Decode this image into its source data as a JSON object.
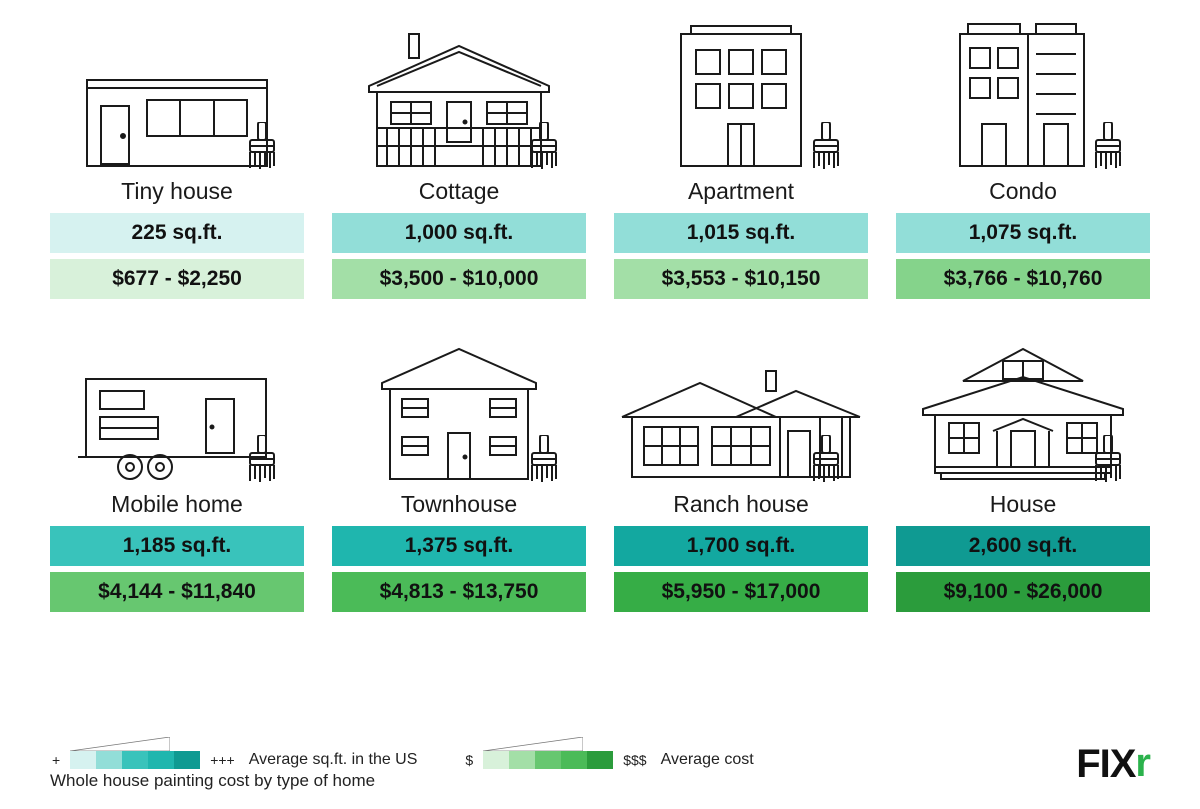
{
  "colors": {
    "stroke": "#1a1a1a",
    "sqft_scale": [
      "#d6f2f0",
      "#b9ebe7",
      "#92ded8",
      "#63d1c9",
      "#39c3bb",
      "#1fb6ae",
      "#13a8a0",
      "#0f9a92"
    ],
    "cost_scale": [
      "#d8f1da",
      "#c0e9c3",
      "#a3dfa7",
      "#85d38b",
      "#67c770",
      "#4bbb58",
      "#36ad46",
      "#2b9c3c"
    ]
  },
  "items": [
    {
      "key": "tiny",
      "label": "Tiny house",
      "sqft": "225 sq.ft.",
      "cost": "$677 - $2,250",
      "sqft_idx": 0,
      "cost_idx": 0
    },
    {
      "key": "cottage",
      "label": "Cottage",
      "sqft": "1,000 sq.ft.",
      "cost": "$3,500 - $10,000",
      "sqft_idx": 2,
      "cost_idx": 2
    },
    {
      "key": "apt",
      "label": "Apartment",
      "sqft": "1,015 sq.ft.",
      "cost": "$3,553 - $10,150",
      "sqft_idx": 2,
      "cost_idx": 2
    },
    {
      "key": "condo",
      "label": "Condo",
      "sqft": "1,075 sq.ft.",
      "cost": "$3,766 - $10,760",
      "sqft_idx": 2,
      "cost_idx": 3
    },
    {
      "key": "mobile",
      "label": "Mobile home",
      "sqft": "1,185 sq.ft.",
      "cost": "$4,144 - $11,840",
      "sqft_idx": 4,
      "cost_idx": 4
    },
    {
      "key": "town",
      "label": "Townhouse",
      "sqft": "1,375 sq.ft.",
      "cost": "$4,813 - $13,750",
      "sqft_idx": 5,
      "cost_idx": 5
    },
    {
      "key": "ranch",
      "label": "Ranch house",
      "sqft": "1,700 sq.ft.",
      "cost": "$5,950 - $17,000",
      "sqft_idx": 6,
      "cost_idx": 6
    },
    {
      "key": "house",
      "label": "House",
      "sqft": "2,600 sq.ft.",
      "cost": "$9,100 - $26,000",
      "sqft_idx": 7,
      "cost_idx": 7
    }
  ],
  "legend": {
    "plus_low": "+",
    "plus_high": "+++",
    "dollar_low": "$",
    "dollar_high": "$$$",
    "sqft_label": "Average sq.ft. in the US",
    "cost_label": "Average cost",
    "subtitle": "Whole house painting cost by type of home"
  },
  "logo": {
    "text": "FIX",
    "accent": "r"
  }
}
